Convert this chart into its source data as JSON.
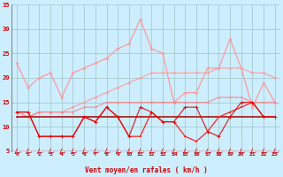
{
  "xlabel": "Vent moyen/en rafales ( km/h )",
  "x": [
    0,
    1,
    2,
    3,
    4,
    5,
    6,
    7,
    8,
    9,
    10,
    11,
    12,
    13,
    14,
    15,
    16,
    17,
    18,
    19,
    20,
    21,
    22,
    23
  ],
  "line_gust_max": [
    23,
    18,
    20,
    21,
    16,
    21,
    22,
    23,
    24,
    26,
    27,
    32,
    26,
    25,
    15,
    17,
    17,
    22,
    22,
    28,
    22,
    14,
    19,
    15
  ],
  "line_gust_mean": [
    12,
    12,
    13,
    13,
    13,
    14,
    15,
    16,
    17,
    18,
    19,
    20,
    21,
    21,
    21,
    21,
    21,
    21,
    22,
    22,
    22,
    21,
    21,
    20
  ],
  "line_avg_upper": [
    13,
    12,
    13,
    13,
    13,
    13,
    14,
    14,
    15,
    15,
    15,
    15,
    15,
    15,
    15,
    15,
    15,
    15,
    16,
    16,
    16,
    15,
    15,
    15
  ],
  "line_avg_flat": [
    12,
    12,
    12,
    12,
    12,
    12,
    12,
    12,
    12,
    12,
    12,
    12,
    12,
    12,
    12,
    12,
    12,
    12,
    12,
    12,
    12,
    12,
    12,
    12
  ],
  "line_wind_mean": [
    13,
    13,
    8,
    8,
    8,
    8,
    12,
    11,
    14,
    12,
    8,
    8,
    13,
    11,
    11,
    8,
    7,
    9,
    12,
    13,
    14,
    15,
    12,
    12
  ],
  "line_wind_inst": [
    13,
    13,
    8,
    8,
    8,
    8,
    12,
    11,
    14,
    12,
    8,
    14,
    13,
    11,
    11,
    14,
    14,
    9,
    8,
    12,
    15,
    15,
    12,
    12
  ],
  "ylim": [
    5,
    35
  ],
  "yticks": [
    5,
    10,
    15,
    20,
    25,
    30,
    35
  ],
  "background_color": "#cceeff",
  "grid_color": "#9bbfbf",
  "color_light_pink": "#ff9999",
  "color_mid_pink": "#ff7777",
  "color_red": "#dd0000",
  "color_dark_red": "#aa0000",
  "color_bright_red": "#ff2222"
}
